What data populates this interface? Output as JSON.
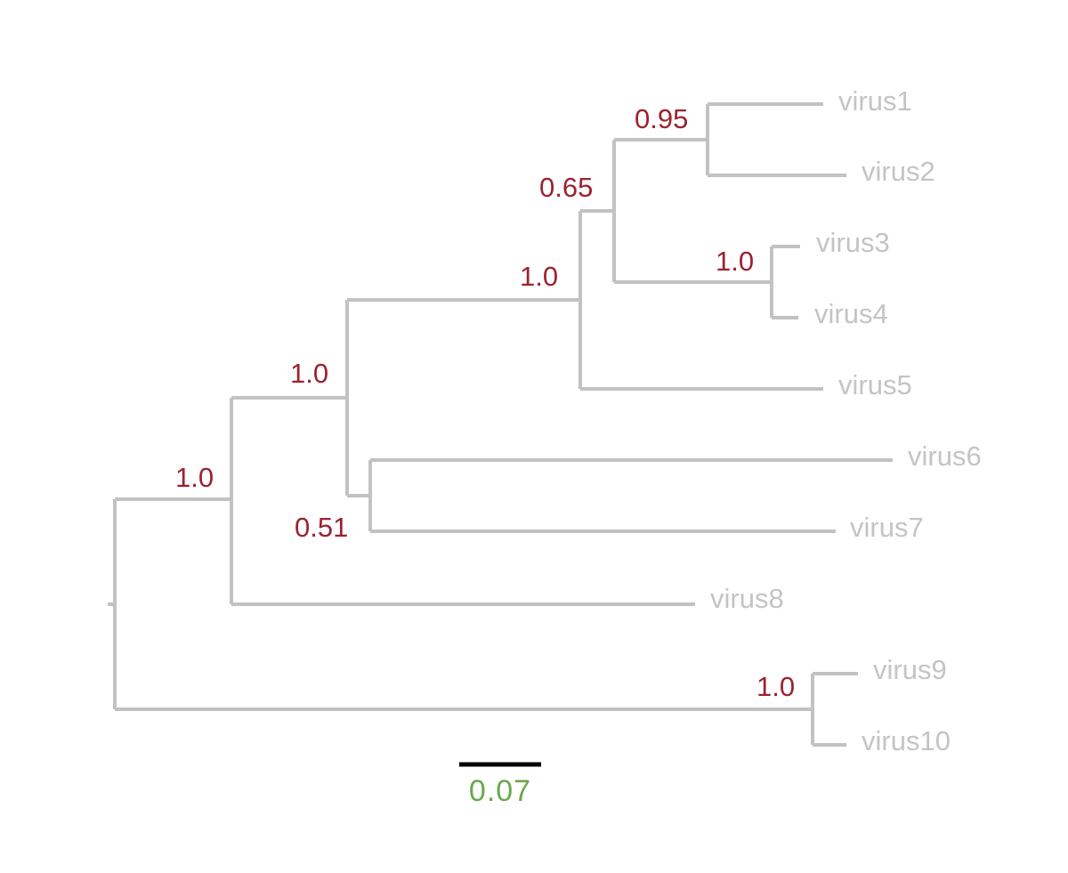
{
  "colors": {
    "branch": "#c2c2c2",
    "tip_label": "#c4c4c4",
    "support_label": "#9b2230",
    "scale_bar": "#000000",
    "scale_label": "#6aa84f",
    "background": "#ffffff"
  },
  "tips": [
    {
      "id": "t1",
      "label": "virus1"
    },
    {
      "id": "t2",
      "label": "virus2"
    },
    {
      "id": "t3",
      "label": "virus3"
    },
    {
      "id": "t4",
      "label": "virus4"
    },
    {
      "id": "t5",
      "label": "virus5"
    },
    {
      "id": "t6",
      "label": "virus6"
    },
    {
      "id": "t7",
      "label": "virus7"
    },
    {
      "id": "t8",
      "label": "virus8"
    },
    {
      "id": "t9",
      "label": "virus9"
    },
    {
      "id": "t10",
      "label": "virus10"
    }
  ],
  "support_values": {
    "n12": "0.95",
    "n34": "1.0",
    "n1234": "0.65",
    "n12345": "1.0",
    "n67": "0.51",
    "n1to7": "1.0",
    "n1to8": "1.0",
    "n910": "1.0"
  },
  "scale_bar": {
    "label": "0.07"
  }
}
